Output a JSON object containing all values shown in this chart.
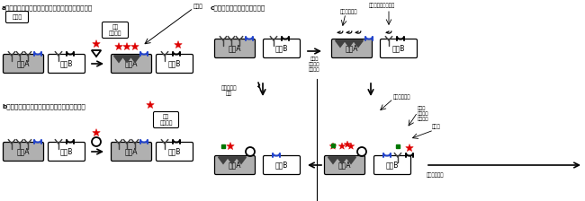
{
  "title_a": "a強い相互作用を用いる場合（低いコントラスト）",
  "title_b": "b弱い相互作用を用いる場合（低いシグナル）",
  "title_c": "c本研究（高いコントラスト）",
  "label_cellA": "細胞A",
  "label_cellB": "細胞B",
  "label_kouhatsugenn": "高発現",
  "label_strong": "強い\n相互作用",
  "label_weak": "弱い\n相互作用",
  "label_yokouchiki": "標識基",
  "label_reactive": "反応性官能基",
  "label_primary": "一次的\n相互作用\n（強い）",
  "label_secondary": "二次的\n相互作用\n（弱い）",
  "label_chem": "化学反応で\n繋ぐ",
  "label_preter": "プレターゲティング",
  "label_wash": "洗い流される",
  "bg_color": "#ffffff",
  "darkgray": "#404040",
  "black": "#000000",
  "blue": "#2244cc",
  "red": "#dd0000",
  "green": "#007700",
  "cellgray": "#b0b0b0",
  "boxgray": "#c8c8c8"
}
